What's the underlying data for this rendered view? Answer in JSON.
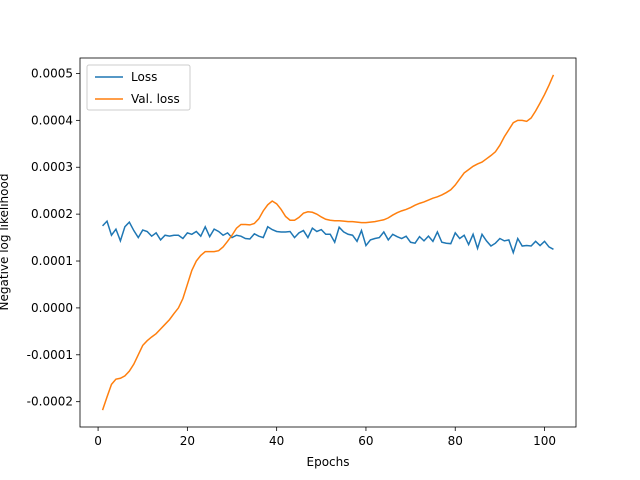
{
  "chart_data": {
    "type": "line",
    "xlabel": "Epochs",
    "ylabel": "Negative log likelihood",
    "x": [
      1,
      2,
      3,
      4,
      5,
      6,
      7,
      8,
      9,
      10,
      11,
      12,
      13,
      14,
      15,
      16,
      17,
      18,
      19,
      20,
      21,
      22,
      23,
      24,
      25,
      26,
      27,
      28,
      29,
      30,
      31,
      32,
      33,
      34,
      35,
      36,
      37,
      38,
      39,
      40,
      41,
      42,
      43,
      44,
      45,
      46,
      47,
      48,
      49,
      50,
      51,
      52,
      53,
      54,
      55,
      56,
      57,
      58,
      59,
      60,
      61,
      62,
      63,
      64,
      65,
      66,
      67,
      68,
      69,
      70,
      71,
      72,
      73,
      74,
      75,
      76,
      77,
      78,
      79,
      80,
      81,
      82,
      83,
      84,
      85,
      86,
      87,
      88,
      89,
      90,
      91,
      92,
      93,
      94,
      95,
      96,
      97,
      98,
      99,
      100,
      101,
      102
    ],
    "series": [
      {
        "name": "Loss",
        "color": "#1f77b4",
        "values": [
          0.000175,
          0.000185,
          0.000155,
          0.000168,
          0.000143,
          0.000173,
          0.000183,
          0.000165,
          0.00015,
          0.000166,
          0.000163,
          0.000153,
          0.00016,
          0.000145,
          0.000155,
          0.000153,
          0.000155,
          0.000155,
          0.000148,
          0.00016,
          0.000157,
          0.000163,
          0.000153,
          0.000173,
          0.000152,
          0.000168,
          0.000163,
          0.000155,
          0.00016,
          0.00015,
          0.000155,
          0.000153,
          0.000148,
          0.000147,
          0.000158,
          0.000153,
          0.00015,
          0.000173,
          0.000167,
          0.000163,
          0.000162,
          0.000162,
          0.000163,
          0.00015,
          0.00016,
          0.000165,
          0.00015,
          0.00017,
          0.000163,
          0.000167,
          0.000157,
          0.000157,
          0.00014,
          0.000172,
          0.000162,
          0.000157,
          0.000155,
          0.000142,
          0.000165,
          0.000133,
          0.000145,
          0.000148,
          0.00015,
          0.000162,
          0.000145,
          0.000157,
          0.000152,
          0.000148,
          0.000153,
          0.00014,
          0.000138,
          0.000152,
          0.000143,
          0.000153,
          0.000142,
          0.000162,
          0.00014,
          0.000138,
          0.000137,
          0.00016,
          0.000148,
          0.000155,
          0.000135,
          0.000157,
          0.000127,
          0.000157,
          0.000143,
          0.000132,
          0.000138,
          0.000148,
          0.000143,
          0.000145,
          0.000118,
          0.000148,
          0.000132,
          0.000133,
          0.000132,
          0.000142,
          0.000133,
          0.000142,
          0.00013,
          0.000125
        ]
      },
      {
        "name": "Val. loss",
        "color": "#ff7f0e",
        "values": [
          -0.000218,
          -0.00019,
          -0.000163,
          -0.000152,
          -0.00015,
          -0.000145,
          -0.000135,
          -0.00012,
          -0.0001,
          -8e-05,
          -7e-05,
          -6.2e-05,
          -5.5e-05,
          -4.5e-05,
          -3.5e-05,
          -2.5e-05,
          -1.2e-05,
          0,
          2e-05,
          5e-05,
          8e-05,
          0.0001,
          0.000112,
          0.00012,
          0.00012,
          0.00012,
          0.000122,
          0.00013,
          0.000142,
          0.000155,
          0.00017,
          0.000178,
          0.000178,
          0.000177,
          0.00018,
          0.00019,
          0.000207,
          0.00022,
          0.000228,
          0.000222,
          0.00021,
          0.000195,
          0.000187,
          0.000187,
          0.000193,
          0.000202,
          0.000205,
          0.000204,
          0.0002,
          0.000194,
          0.000189,
          0.000187,
          0.000186,
          0.000186,
          0.000185,
          0.000184,
          0.000184,
          0.000183,
          0.000182,
          0.000182,
          0.000183,
          0.000184,
          0.000186,
          0.000188,
          0.000192,
          0.000198,
          0.000203,
          0.000207,
          0.00021,
          0.000214,
          0.000219,
          0.000223,
          0.000226,
          0.00023,
          0.000234,
          0.000237,
          0.000241,
          0.000246,
          0.000252,
          0.000262,
          0.000275,
          0.000288,
          0.000295,
          0.000302,
          0.000307,
          0.000311,
          0.000318,
          0.000325,
          0.000333,
          0.000347,
          0.000365,
          0.00038,
          0.000395,
          0.0004,
          0.0004,
          0.000398,
          0.000405,
          0.00042,
          0.000437,
          0.000455,
          0.000475,
          0.000497
        ]
      }
    ],
    "xlim": [
      -4.05,
      107.05
    ],
    "xticks": [
      0,
      20,
      40,
      60,
      80,
      100
    ],
    "ylim": [
      -0.000254,
      0.000533
    ],
    "yticks": [
      -0.0002,
      -0.0001,
      {
        "value": 0,
        "label": "0.0000"
      },
      0.0001,
      0.0002,
      0.0003,
      0.0004,
      0.0005
    ],
    "legend": "upper left",
    "grid": false
  }
}
